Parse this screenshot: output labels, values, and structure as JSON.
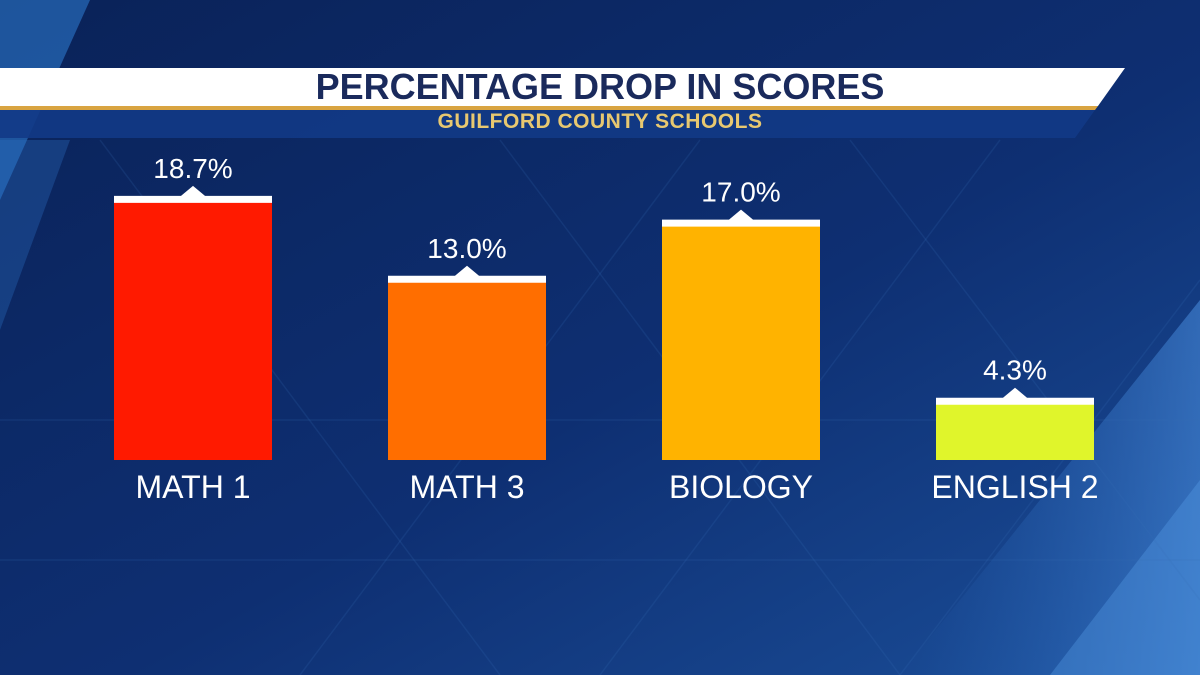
{
  "chart_data": {
    "type": "bar",
    "title": "PERCENTAGE DROP IN SCORES",
    "subtitle": "GUILFORD COUNTY SCHOOLS",
    "categories": [
      "MATH 1",
      "MATH 3",
      "BIOLOGY",
      "ENGLISH 2"
    ],
    "values": [
      18.7,
      13.0,
      17.0,
      4.3
    ],
    "value_labels": [
      "18.7%",
      "13.0%",
      "17.0%",
      "4.3%"
    ],
    "colors": [
      "#ff1a00",
      "#ff6e00",
      "#ffb300",
      "#e0f52b"
    ],
    "xlabel": "",
    "ylabel": "",
    "ylim": [
      0,
      21.4
    ],
    "grid": false,
    "legend": "none"
  },
  "theme": {
    "background": "#0d2a66",
    "banner_fill": "#ffffff",
    "title_color": "#1a2a5c",
    "subtitle_color": "#e8c870",
    "accent_line": "#d9a441"
  }
}
